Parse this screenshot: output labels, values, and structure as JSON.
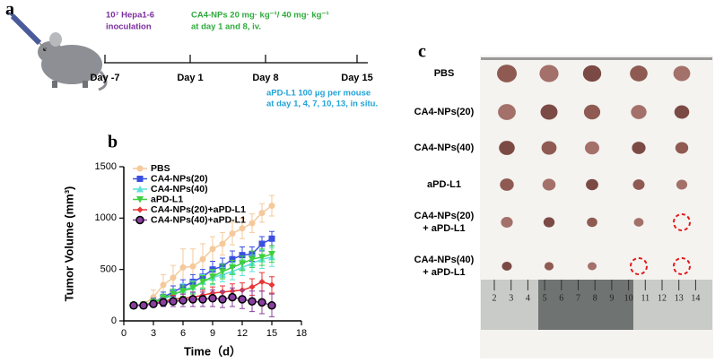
{
  "panel_a": {
    "label": "a",
    "inoculation": [
      "10⁷ Hepa1-6",
      "inoculation"
    ],
    "treatment": [
      "CA4-NPs 20 mg· kg⁻¹/ 40 mg· kg⁻¹",
      "at day 1 and 8, iv."
    ],
    "days": [
      "Day -7",
      "Day 1",
      "Day 8",
      "Day 15"
    ],
    "antibody": [
      "aPD-L1 100 μg per mouse",
      "at day 1, 4, 7, 10, 13, in situ."
    ]
  },
  "panel_b_label": "b",
  "chart_data": {
    "type": "line",
    "xlabel": "Time（d）",
    "ylabel": "Tumor Volume (mm³)",
    "x": [
      1,
      2,
      3,
      4,
      5,
      6,
      7,
      8,
      9,
      10,
      11,
      12,
      13,
      14,
      15
    ],
    "xlim": [
      0,
      18
    ],
    "xticks": [
      0,
      3,
      6,
      9,
      12,
      15,
      18
    ],
    "ylim": [
      0,
      1500
    ],
    "yticks": [
      0,
      500,
      1000,
      1500
    ],
    "series": [
      {
        "name": "PBS",
        "color": "#f5c99b",
        "marker": "circle",
        "values": [
          150,
          160,
          230,
          350,
          420,
          520,
          530,
          600,
          700,
          750,
          850,
          900,
          950,
          1050,
          1120
        ],
        "errors": [
          15,
          30,
          70,
          100,
          120,
          180,
          170,
          150,
          120,
          110,
          110,
          100,
          90,
          90,
          100
        ]
      },
      {
        "name": "CA4-NPs(20)",
        "color": "#3a4fe0",
        "marker": "square",
        "values": [
          150,
          155,
          180,
          230,
          280,
          330,
          380,
          430,
          500,
          530,
          600,
          640,
          650,
          750,
          800
        ],
        "errors": [
          10,
          20,
          40,
          50,
          60,
          70,
          70,
          70,
          80,
          80,
          80,
          80,
          70,
          70,
          70
        ]
      },
      {
        "name": "CA4-NPs(40)",
        "color": "#5fe0d8",
        "marker": "triangle-up",
        "values": [
          150,
          150,
          170,
          210,
          250,
          300,
          330,
          380,
          420,
          450,
          480,
          520,
          560,
          600,
          620
        ],
        "errors": [
          10,
          15,
          30,
          40,
          50,
          60,
          60,
          70,
          70,
          70,
          80,
          80,
          80,
          90,
          90
        ]
      },
      {
        "name": "aPD-L1",
        "color": "#3ecf3e",
        "marker": "triangle-down",
        "values": [
          150,
          155,
          180,
          220,
          260,
          290,
          320,
          380,
          430,
          480,
          520,
          560,
          600,
          620,
          650
        ],
        "errors": [
          10,
          15,
          30,
          40,
          50,
          50,
          60,
          60,
          70,
          70,
          70,
          70,
          80,
          80,
          80
        ]
      },
      {
        "name": "CA4-NPs(20)+aPD-L1",
        "color": "#e83535",
        "marker": "diamond",
        "values": [
          150,
          150,
          170,
          190,
          210,
          220,
          230,
          250,
          270,
          280,
          290,
          300,
          330,
          380,
          350
        ],
        "errors": [
          10,
          15,
          20,
          30,
          40,
          40,
          50,
          50,
          60,
          60,
          70,
          70,
          80,
          90,
          80
        ]
      },
      {
        "name": "CA4-NPs(40)+aPD-L1",
        "color": "#8a3fa0",
        "marker": "circle-outline",
        "values": [
          150,
          150,
          165,
          180,
          190,
          200,
          210,
          210,
          220,
          210,
          230,
          210,
          190,
          180,
          150
        ],
        "errors": [
          10,
          15,
          30,
          40,
          50,
          60,
          70,
          70,
          80,
          80,
          90,
          90,
          100,
          110,
          110
        ]
      }
    ]
  },
  "panel_c": {
    "label": "c",
    "groups": [
      [
        "PBS"
      ],
      [
        "CA4-NPs(20)"
      ],
      [
        "CA4-NPs(40)"
      ],
      [
        "aPD-L1"
      ],
      [
        "CA4-NPs(20)",
        "+ aPD-L1"
      ],
      [
        "CA4-NPs(40)",
        "+ aPD-L1"
      ]
    ],
    "ruler": [
      2,
      3,
      4,
      5,
      6,
      7,
      8,
      9,
      10,
      11,
      12,
      13,
      14
    ]
  }
}
